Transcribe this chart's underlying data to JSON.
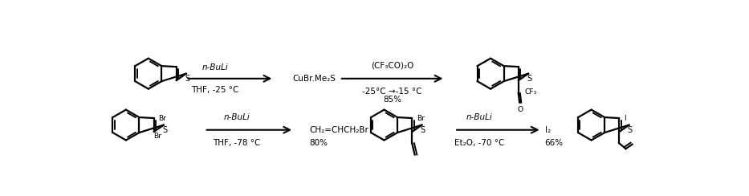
{
  "background_color": "#ffffff",
  "top_row": {
    "reagent1_above": "n-BuLi",
    "reagent1_below": "THF, -25 °C",
    "middle_label": "CuBr.Me₂S",
    "reagent2_above": "(CF₃CO)₂O",
    "reagent2_below": "-25°C →-15 °C",
    "yield": "85%"
  },
  "bottom_row": {
    "reagent1_above": "n-BuLi",
    "reagent1_below": "THF, -78 °C",
    "middle_label": "CH₂=CHCH₂Br",
    "yield1": "80%",
    "reagent2_above": "n-BuLi",
    "reagent2_below": "Et₂O, -70 °C",
    "middle2_label": "I₂",
    "yield2": "66%"
  }
}
